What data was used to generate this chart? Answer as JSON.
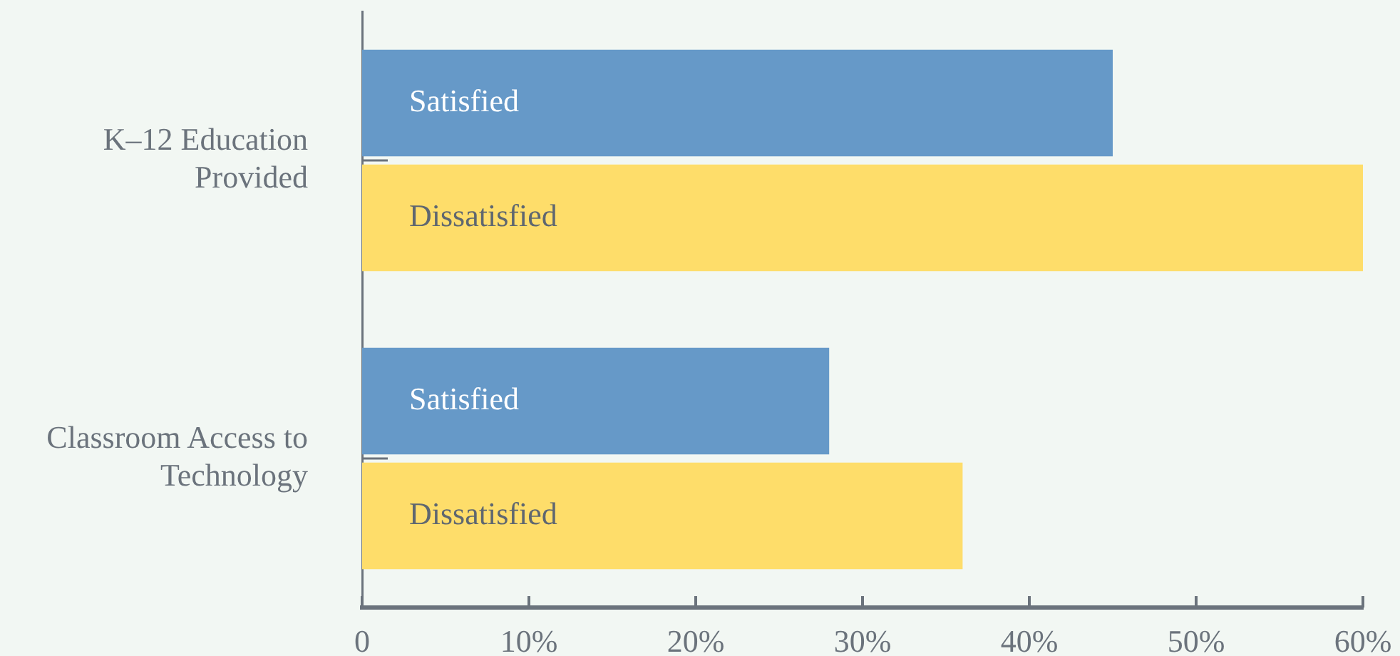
{
  "chart_data": {
    "type": "bar",
    "orientation": "horizontal",
    "categories": [
      "K–12 Education Provided",
      "Classroom Access to Technology"
    ],
    "series": [
      {
        "name": "Satisfied",
        "color": "#6699c8",
        "values": [
          45,
          28
        ]
      },
      {
        "name": "Dissatisfied",
        "color": "#fedd6a",
        "values": [
          60,
          36
        ]
      }
    ],
    "xlim": [
      0,
      60
    ],
    "xticks": [
      {
        "value": 0,
        "label": "0"
      },
      {
        "value": 10,
        "label": "10%"
      },
      {
        "value": 20,
        "label": "20%"
      },
      {
        "value": 30,
        "label": "30%"
      },
      {
        "value": 40,
        "label": "40%"
      },
      {
        "value": 50,
        "label": "50%"
      },
      {
        "value": 60,
        "label": "60%"
      }
    ],
    "legend": false
  }
}
